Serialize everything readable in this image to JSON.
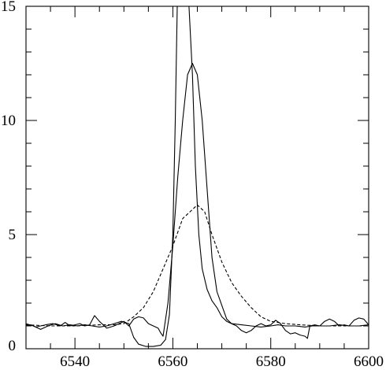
{
  "chart_data": {
    "type": "line",
    "title": "",
    "xlabel": "",
    "ylabel": "",
    "xlim": [
      6530,
      6600
    ],
    "ylim": [
      0,
      15
    ],
    "grid": false,
    "legend": "none",
    "x_major_ticks": [
      6540,
      6560,
      6580,
      6600
    ],
    "x_tick_labels": [
      "6540",
      "6560",
      "6580",
      "6600"
    ],
    "x_minor_step": 5,
    "y_major_ticks": [
      0,
      5,
      10,
      15
    ],
    "y_tick_labels": [
      "0",
      "5",
      "10",
      "15"
    ],
    "y_minor_step": 1,
    "series": [
      {
        "style": "solid",
        "x": [
          6530.0,
          6531.5,
          6533.0,
          6534.5,
          6536.0,
          6537.5,
          6539.0,
          6540.5,
          6542.0,
          6543.5,
          6545.0,
          6546.5,
          6548.0,
          6549.5,
          6551.0,
          6552.0,
          6553.0,
          6554.5,
          6556.0,
          6557.5,
          6558.5,
          6559.3,
          6560.0,
          6560.5,
          6560.9,
          6561.6,
          6562.0,
          6562.6,
          6563.3,
          6564.0,
          6564.6,
          6565.3,
          6566.0,
          6567.0,
          6568.0,
          6569.0,
          6570.0,
          6571.0,
          6572.0,
          6574.0,
          6576.0,
          6578.0,
          6580.0,
          6581.5,
          6583.0,
          6585.0,
          6587.0,
          6588.5,
          6590.0,
          6592.0,
          6594.0,
          6596.0,
          6598.0,
          6600.0
        ],
        "y": [
          1.1,
          1.0,
          0.85,
          1.0,
          1.1,
          1.0,
          1.05,
          1.0,
          1.05,
          1.0,
          0.95,
          1.0,
          1.1,
          1.2,
          1.1,
          0.5,
          0.2,
          0.1,
          0.1,
          0.15,
          0.4,
          1.5,
          5.0,
          10.0,
          15.0,
          15.0,
          15.0,
          15.0,
          15.0,
          12.0,
          8.0,
          5.0,
          3.5,
          2.6,
          2.1,
          1.8,
          1.4,
          1.2,
          1.1,
          1.05,
          1.0,
          0.95,
          1.0,
          1.05,
          1.0,
          1.0,
          0.95,
          1.0,
          1.0,
          1.0,
          1.05,
          1.0,
          1.0,
          1.05
        ]
      },
      {
        "style": "solid",
        "x": [
          6530.0,
          6531.0,
          6532.0,
          6533.0,
          6534.0,
          6535.5,
          6537.0,
          6538.0,
          6539.0,
          6540.0,
          6541.0,
          6542.0,
          6543.0,
          6544.0,
          6545.0,
          6546.5,
          6548.0,
          6549.0,
          6550.0,
          6551.0,
          6552.0,
          6553.0,
          6554.0,
          6555.0,
          6556.0,
          6557.0,
          6557.5,
          6558.0,
          6559.0,
          6560.0,
          6561.0,
          6562.0,
          6563.0,
          6564.0,
          6565.0,
          6566.0,
          6567.0,
          6568.0,
          6569.0,
          6570.0,
          6571.0,
          6572.0,
          6573.0,
          6574.0,
          6575.0,
          6576.0,
          6577.0,
          6578.0,
          6579.0,
          6580.0,
          6581.0,
          6582.0,
          6583.0,
          6584.0,
          6585.0,
          6586.0,
          6587.0,
          6587.5,
          6588.0,
          6589.0,
          6590.0,
          6591.0,
          6592.0,
          6593.0,
          6594.0,
          6595.0,
          6596.0,
          6597.0,
          6598.0,
          6599.0,
          6600.0
        ],
        "y": [
          1.0,
          1.05,
          0.95,
          1.0,
          1.05,
          1.1,
          1.0,
          1.15,
          1.0,
          1.05,
          1.1,
          1.0,
          1.05,
          1.45,
          1.2,
          0.9,
          1.0,
          1.1,
          1.2,
          1.0,
          1.3,
          1.4,
          1.35,
          1.1,
          1.0,
          0.9,
          0.7,
          0.55,
          2.0,
          4.5,
          7.5,
          10.0,
          12.0,
          12.5,
          12.0,
          10.0,
          7.0,
          4.0,
          2.5,
          1.9,
          1.3,
          1.1,
          1.0,
          0.8,
          0.7,
          0.8,
          1.0,
          1.1,
          1.0,
          1.05,
          1.25,
          1.1,
          0.8,
          0.65,
          0.7,
          0.6,
          0.55,
          0.45,
          1.0,
          1.05,
          1.0,
          1.2,
          1.3,
          1.2,
          1.0,
          1.05,
          1.0,
          1.25,
          1.35,
          1.3,
          1.05
        ]
      },
      {
        "style": "dashed",
        "x": [
          6530.0,
          6535.0,
          6540.0,
          6545.0,
          6548.0,
          6550.0,
          6552.0,
          6554.0,
          6556.0,
          6558.0,
          6560.0,
          6562.0,
          6565.0,
          6566.5,
          6568.0,
          6570.0,
          6572.0,
          6574.0,
          6576.0,
          6578.0,
          6580.0,
          6583.0,
          6586.0,
          6590.0,
          6595.0,
          6600.0
        ],
        "y": [
          1.05,
          1.0,
          1.0,
          1.05,
          1.05,
          1.1,
          1.4,
          1.8,
          2.5,
          3.5,
          4.5,
          5.7,
          6.3,
          6.0,
          5.0,
          3.8,
          2.9,
          2.3,
          1.8,
          1.4,
          1.2,
          1.1,
          1.05,
          1.0,
          1.0,
          1.0
        ]
      }
    ]
  }
}
